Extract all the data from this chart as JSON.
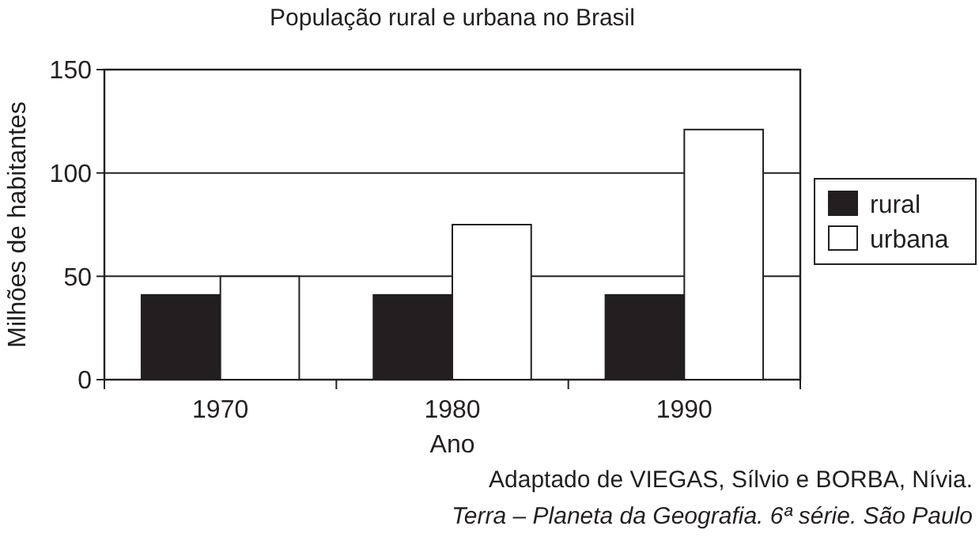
{
  "chart_data": {
    "type": "bar",
    "title": "População rural e urbana no Brasil",
    "xlabel": "Ano",
    "ylabel": "Milhões de habitantes",
    "categories": [
      "1970",
      "1980",
      "1990"
    ],
    "series": [
      {
        "name": "rural",
        "color": "#231f20",
        "values": [
          41,
          41,
          41
        ]
      },
      {
        "name": "urbana",
        "color": "#ffffff",
        "values": [
          50,
          75,
          121
        ]
      }
    ],
    "ylim": [
      0,
      150
    ],
    "yticks": [
      0,
      50,
      100,
      150
    ],
    "grid": "y",
    "legend": "right",
    "annotations": [
      "Adaptado de VIEGAS, Sílvio e BORBA, Nívia.",
      "Terra – Planeta da Geografia. 6ª série. São Paulo"
    ]
  }
}
